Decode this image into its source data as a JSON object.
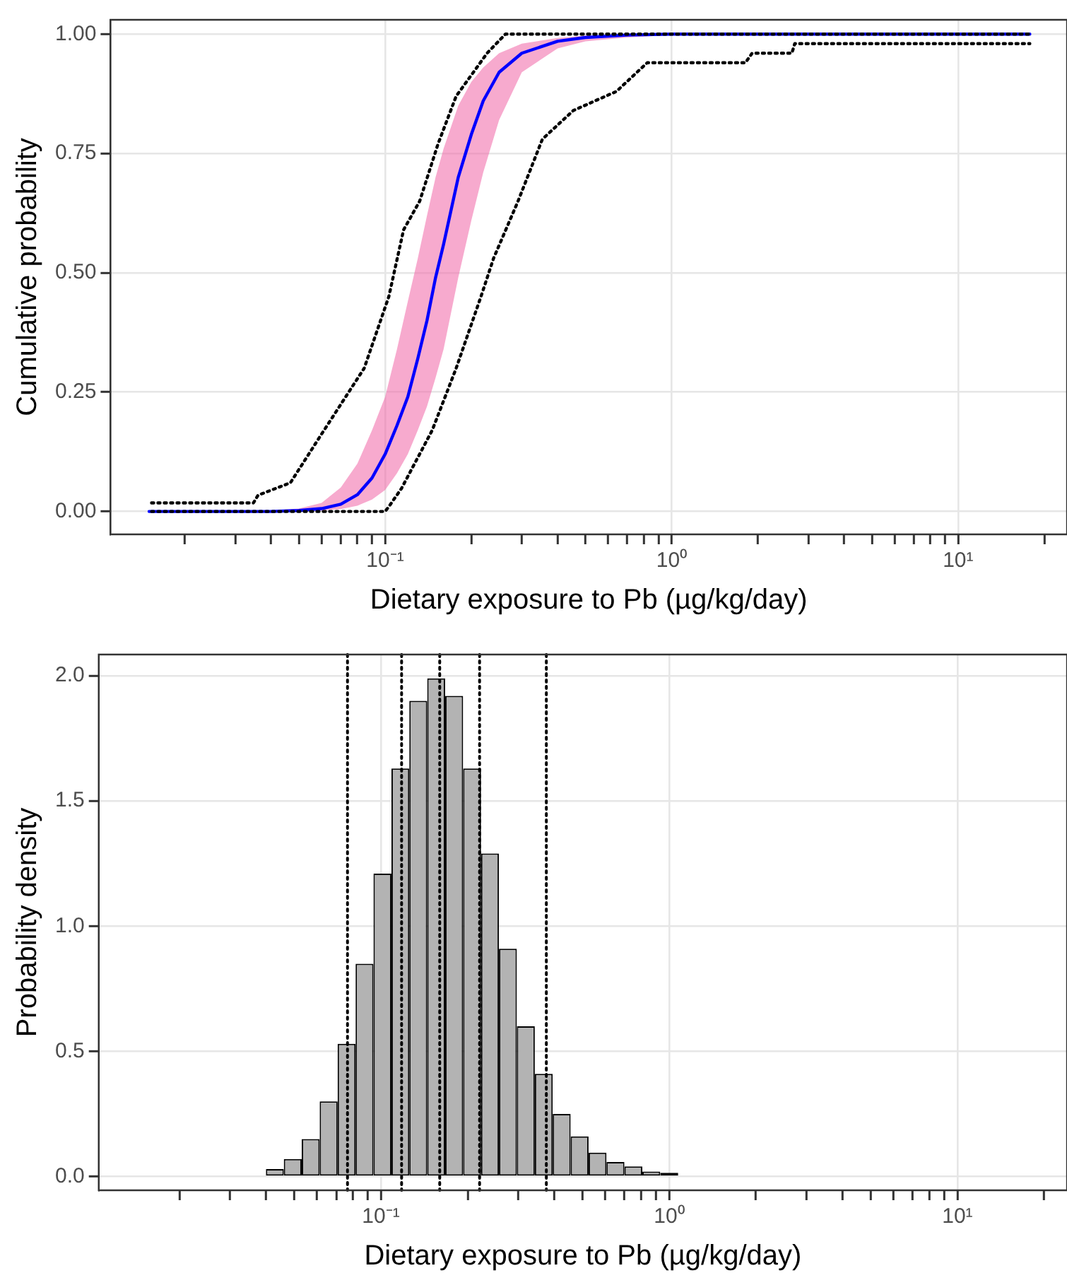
{
  "chart_data": [
    {
      "type": "line",
      "xlabel": "Dietary exposure to Pb (µg/kg/day)",
      "ylabel": "Cumulative probability",
      "log": "x",
      "grid": true,
      "legend": false,
      "xlim": [
        0.011,
        24
      ],
      "ylim": [
        -0.048,
        1.03
      ],
      "xticks": [
        {
          "value": 0.02,
          "label": null
        },
        {
          "value": 0.03,
          "label": null
        },
        {
          "value": 0.04,
          "label": null
        },
        {
          "value": 0.05,
          "label": null
        },
        {
          "value": 0.06,
          "label": null
        },
        {
          "value": 0.07,
          "label": null
        },
        {
          "value": 0.08,
          "label": null
        },
        {
          "value": 0.09,
          "label": null
        },
        {
          "value": 0.1,
          "label": "10⁻¹"
        },
        {
          "value": 0.2,
          "label": null
        },
        {
          "value": 0.3,
          "label": null
        },
        {
          "value": 0.4,
          "label": null
        },
        {
          "value": 0.5,
          "label": null
        },
        {
          "value": 0.6,
          "label": null
        },
        {
          "value": 0.7,
          "label": null
        },
        {
          "value": 0.8,
          "label": null
        },
        {
          "value": 0.9,
          "label": null
        },
        {
          "value": 1,
          "label": "10⁰"
        },
        {
          "value": 2,
          "label": null
        },
        {
          "value": 3,
          "label": null
        },
        {
          "value": 4,
          "label": null
        },
        {
          "value": 5,
          "label": null
        },
        {
          "value": 6,
          "label": null
        },
        {
          "value": 7,
          "label": null
        },
        {
          "value": 8,
          "label": null
        },
        {
          "value": 9,
          "label": null
        },
        {
          "value": 10,
          "label": "10¹"
        },
        {
          "value": 20,
          "label": null
        }
      ],
      "yticks": [
        {
          "value": 0,
          "label": "0.00"
        },
        {
          "value": 0.25,
          "label": "0.25"
        },
        {
          "value": 0.5,
          "label": "0.50"
        },
        {
          "value": 0.75,
          "label": "0.75"
        },
        {
          "value": 1,
          "label": "1.00"
        }
      ],
      "series": [
        {
          "color": "#0000ff",
          "line_style": "solid",
          "x": [
            0.015,
            0.04,
            0.05,
            0.06,
            0.07,
            0.08,
            0.09,
            0.1,
            0.11,
            0.12,
            0.13,
            0.14,
            0.15,
            0.16,
            0.18,
            0.2,
            0.22,
            0.25,
            0.3,
            0.4,
            0.5,
            0.7,
            1,
            17.8
          ],
          "values": [
            0,
            0,
            0.002,
            0.006,
            0.015,
            0.035,
            0.07,
            0.12,
            0.18,
            0.24,
            0.32,
            0.4,
            0.49,
            0.56,
            0.7,
            0.79,
            0.86,
            0.92,
            0.96,
            0.985,
            0.993,
            0.998,
            1,
            1
          ],
          "lower": [
            0,
            0,
            0,
            0.002,
            0.005,
            0.012,
            0.025,
            0.045,
            0.08,
            0.12,
            0.17,
            0.22,
            0.28,
            0.34,
            0.49,
            0.61,
            0.71,
            0.82,
            0.92,
            0.97,
            0.985,
            0.993,
            0.998,
            1
          ],
          "upper": [
            0,
            0.002,
            0.006,
            0.018,
            0.05,
            0.1,
            0.17,
            0.24,
            0.34,
            0.44,
            0.53,
            0.62,
            0.7,
            0.76,
            0.85,
            0.9,
            0.93,
            0.96,
            0.98,
            0.992,
            0.997,
            0.999,
            1,
            1
          ]
        },
        {
          "color": "#000000",
          "line_style": "dotted",
          "x": [
            0.0153,
            0.0347,
            0.036,
            0.0467,
            0.0597,
            0.0845,
            0.103,
            0.116,
            0.132,
            0.153,
            0.177,
            0.227,
            0.263,
            17.8
          ],
          "values": [
            0.018,
            0.018,
            0.034,
            0.06,
            0.16,
            0.3,
            0.45,
            0.59,
            0.65,
            0.77,
            0.87,
            0.96,
            1,
            1
          ]
        },
        {
          "color": "#000000",
          "line_style": "dotted",
          "x": [
            0.0153,
            0.1,
            0.103,
            0.114,
            0.146,
            0.177,
            0.216,
            0.239,
            0.291,
            0.354,
            0.454,
            0.642,
            0.822,
            1.81,
            1.91,
            2.63,
            2.69,
            17.8
          ],
          "values": [
            0,
            0,
            0.01,
            0.048,
            0.17,
            0.3,
            0.45,
            0.53,
            0.65,
            0.78,
            0.84,
            0.88,
            0.94,
            0.94,
            0.96,
            0.96,
            0.98,
            0.98
          ]
        }
      ]
    },
    {
      "type": "histogram",
      "xlabel": "Dietary exposure to Pb (µg/kg/day)",
      "ylabel": "Probability density",
      "log": "x",
      "grid": true,
      "legend": false,
      "color": "#b3b3b3",
      "xlim": [
        0.0105,
        24
      ],
      "ylim": [
        -0.055,
        2.085
      ],
      "xticks": [
        {
          "value": 0.02,
          "label": null
        },
        {
          "value": 0.03,
          "label": null
        },
        {
          "value": 0.04,
          "label": null
        },
        {
          "value": 0.05,
          "label": null
        },
        {
          "value": 0.06,
          "label": null
        },
        {
          "value": 0.07,
          "label": null
        },
        {
          "value": 0.08,
          "label": null
        },
        {
          "value": 0.09,
          "label": null
        },
        {
          "value": 0.1,
          "label": "10⁻¹"
        },
        {
          "value": 0.2,
          "label": null
        },
        {
          "value": 0.3,
          "label": null
        },
        {
          "value": 0.4,
          "label": null
        },
        {
          "value": 0.5,
          "label": null
        },
        {
          "value": 0.6,
          "label": null
        },
        {
          "value": 0.7,
          "label": null
        },
        {
          "value": 0.8,
          "label": null
        },
        {
          "value": 0.9,
          "label": null
        },
        {
          "value": 1,
          "label": "10⁰"
        },
        {
          "value": 2,
          "label": null
        },
        {
          "value": 3,
          "label": null
        },
        {
          "value": 4,
          "label": null
        },
        {
          "value": 5,
          "label": null
        },
        {
          "value": 6,
          "label": null
        },
        {
          "value": 7,
          "label": null
        },
        {
          "value": 8,
          "label": null
        },
        {
          "value": 9,
          "label": null
        },
        {
          "value": 10,
          "label": "10¹"
        },
        {
          "value": 20,
          "label": null
        }
      ],
      "yticks": [
        {
          "value": 0,
          "label": "0.0"
        },
        {
          "value": 0.5,
          "label": "0.5"
        },
        {
          "value": 1,
          "label": "1.0"
        },
        {
          "value": 1.5,
          "label": "1.5"
        },
        {
          "value": 2,
          "label": "2.0"
        }
      ],
      "bins": [
        0.01466,
        0.01691,
        0.01951,
        0.02252,
        0.02598,
        0.02998,
        0.03459,
        0.03992,
        0.04606,
        0.05315,
        0.06133,
        0.07079,
        0.08171,
        0.09426,
        0.1088,
        0.1255,
        0.1448,
        0.1671,
        0.1929,
        0.2226,
        0.2568,
        0.2963,
        0.342,
        0.3946,
        0.4553,
        0.5254,
        0.6063,
        0.6996,
        0.8072,
        0.9315,
        1.075,
        1.24,
        1.432,
        1.652,
        1.906,
        2.199,
        2.538,
        2.929,
        3.38,
        3.899,
        4.499,
        5.192,
        5.993,
        6.914,
        7.979,
        9.207,
        10.62,
        12.26,
        14.15,
        16.32,
        18.84
      ],
      "values": [
        0,
        0,
        0,
        0,
        0,
        0,
        0,
        0.03,
        0.07,
        0.15,
        0.3,
        0.53,
        0.85,
        1.21,
        1.63,
        1.9,
        1.99,
        1.92,
        1.63,
        1.29,
        0.91,
        0.6,
        0.41,
        0.25,
        0.16,
        0.095,
        0.058,
        0.04,
        0.02,
        0.015,
        0,
        0,
        0,
        0,
        0,
        0,
        0,
        0,
        0,
        0,
        0,
        0,
        0,
        0,
        0,
        0,
        0,
        0,
        0,
        0
      ],
      "ref_lines": [
        {
          "axis": "x",
          "value": 0.0766,
          "color": "#000000",
          "line_style": "dotted"
        },
        {
          "axis": "x",
          "value": 0.118,
          "color": "#000000",
          "line_style": "dotted"
        },
        {
          "axis": "x",
          "value": 0.16,
          "color": "#000000",
          "line_style": "dotted"
        },
        {
          "axis": "x",
          "value": 0.22,
          "color": "#000000",
          "line_style": "dotted"
        },
        {
          "axis": "x",
          "value": 0.375,
          "color": "#000000",
          "line_style": "dotted"
        }
      ]
    }
  ]
}
